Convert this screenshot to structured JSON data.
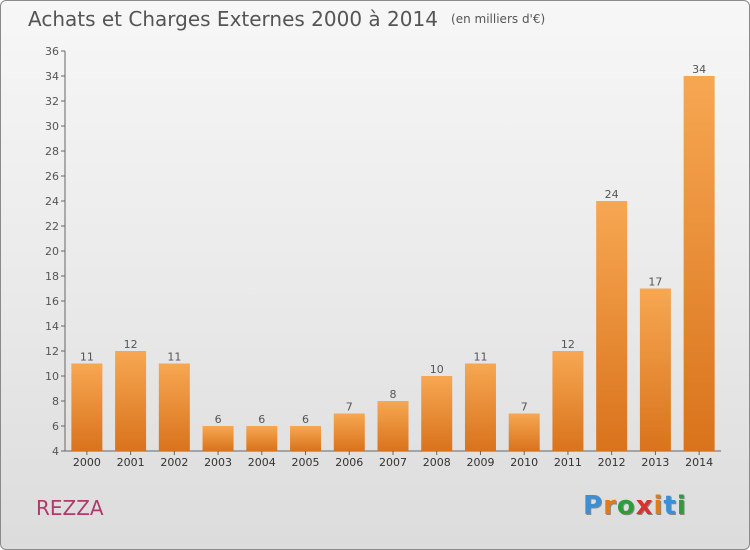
{
  "title": "Achats et Charges Externes 2000 à 2014",
  "subtitle": "(en milliers d'€)",
  "commune": "REZZA",
  "logo": {
    "text": "Proxiti",
    "letters": [
      "P",
      "r",
      "o",
      "x",
      "i",
      "t",
      "i"
    ],
    "colors": [
      "#3b8fd6",
      "#e07b16",
      "#2f9b3a",
      "#d6332e",
      "#e07b16",
      "#3b8fd6",
      "#2f9b3a"
    ]
  },
  "colors": {
    "bar_light": "#f7a752",
    "bar_dark": "#d9731c",
    "text": "#555555",
    "commune": "#b03a6a"
  },
  "chart_data": {
    "type": "bar",
    "title": "Achats et Charges Externes 2000 à 2014",
    "subtitle": "(en milliers d'€)",
    "categories": [
      "2000",
      "2001",
      "2002",
      "2003",
      "2004",
      "2005",
      "2006",
      "2007",
      "2008",
      "2009",
      "2010",
      "2011",
      "2012",
      "2013",
      "2014"
    ],
    "values": [
      11,
      12,
      11,
      6,
      6,
      6,
      7,
      8,
      10,
      11,
      7,
      12,
      24,
      17,
      34
    ],
    "ylim": [
      4,
      36
    ],
    "yticks": [
      4,
      6,
      8,
      10,
      12,
      14,
      16,
      18,
      20,
      22,
      24,
      26,
      28,
      30,
      32,
      34,
      36
    ],
    "grid": false,
    "legend": "none",
    "data_labels": true
  }
}
